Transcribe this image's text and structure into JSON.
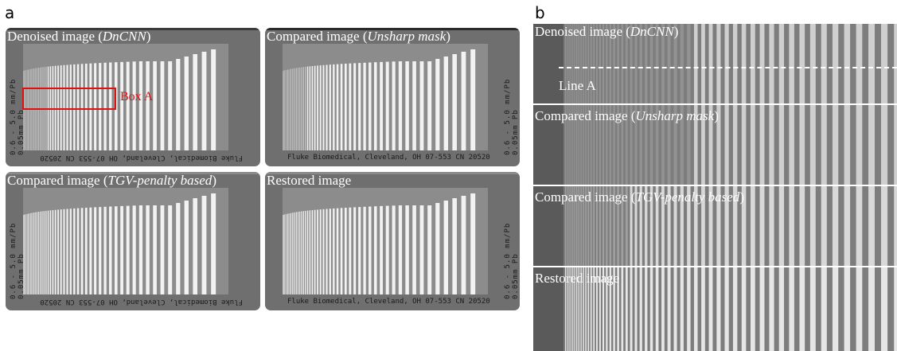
{
  "panel_labels": {
    "a": "a",
    "b": "b"
  },
  "panel_a": {
    "images": [
      {
        "id": "dncnn",
        "caption_prefix": "Denoised image (",
        "caption_method": "DnCNN",
        "caption_suffix": ")"
      },
      {
        "id": "unsharp",
        "caption_prefix": "Compared image (",
        "caption_method": "Unsharp mask",
        "caption_suffix": ")"
      },
      {
        "id": "tgv",
        "caption_prefix": "Compared image (",
        "caption_method": "TGV-penalty based",
        "caption_suffix": ")"
      },
      {
        "id": "restored",
        "caption_prefix": "Restored image",
        "caption_method": "",
        "caption_suffix": ""
      }
    ],
    "phantom_text": {
      "vertical_1": "0.6 - 5.0 mm/Pb 0.05mm Pb",
      "bottom": "Fluke Biomedical, Cleveland, OH   07-553  CN 20520"
    },
    "box_label": "Box A"
  },
  "panel_b": {
    "strips": [
      {
        "id": "dncnn",
        "caption_prefix": "Denoised image (",
        "caption_method": "DnCNN",
        "caption_suffix": ")"
      },
      {
        "id": "unsharp",
        "caption_prefix": "Compared image (",
        "caption_method": "Unsharp mask",
        "caption_suffix": ")"
      },
      {
        "id": "tgv",
        "caption_prefix": "Compared image (",
        "caption_method": "TGV-penalty based",
        "caption_suffix": ")"
      },
      {
        "id": "restored",
        "caption_prefix": "Restored image",
        "caption_method": "",
        "caption_suffix": ""
      }
    ],
    "line_label": "Line A"
  }
}
